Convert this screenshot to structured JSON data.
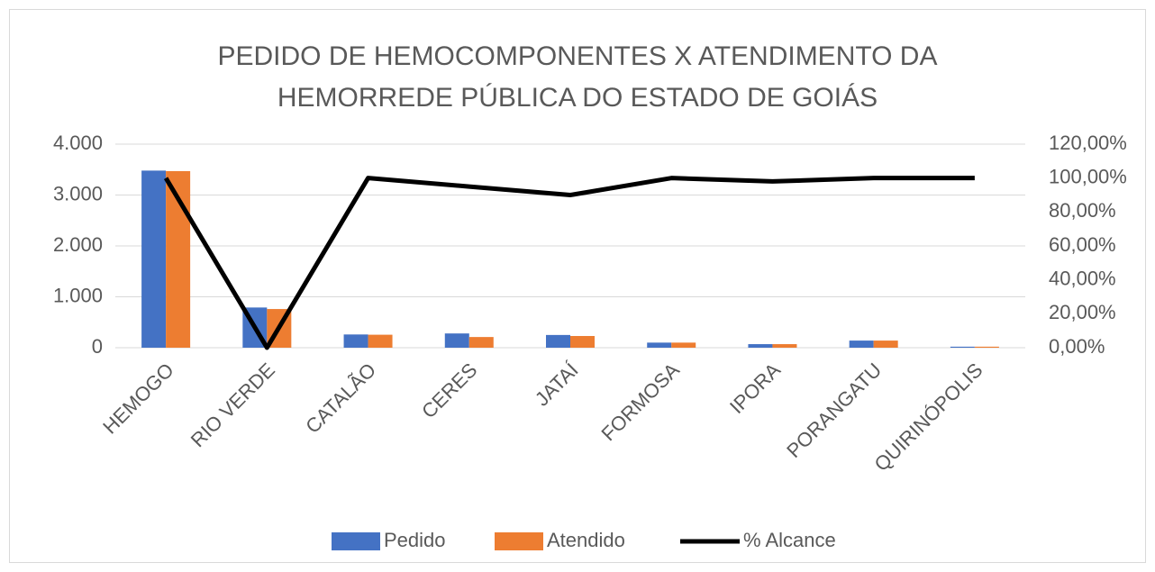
{
  "chart_data": {
    "type": "bar",
    "title": "PEDIDO DE HEMOCOMPONENTES X ATENDIMENTO DA HEMORREDE PÚBLICA DO ESTADO DE GOIÁS",
    "categories": [
      "HEMOGO",
      "RIO VERDE",
      "CATALÃO",
      "CERES",
      "JATAÍ",
      "FORMOSA",
      "IPORA",
      "PORANGATU",
      "QUIRINÓPOLIS"
    ],
    "series": [
      {
        "name": "Pedido",
        "type": "bar",
        "color": "#4472c4",
        "values": [
          3480,
          790,
          260,
          280,
          250,
          100,
          70,
          140,
          20
        ]
      },
      {
        "name": "Atendido",
        "type": "bar",
        "color": "#ed7d31",
        "values": [
          3470,
          760,
          255,
          210,
          230,
          100,
          70,
          140,
          20
        ]
      },
      {
        "name": "% Alcance",
        "type": "line",
        "axis": "y2",
        "color": "#000000",
        "values": [
          100,
          0,
          100,
          95,
          90,
          100,
          98,
          100,
          100
        ]
      }
    ],
    "ylim": [
      0,
      4000
    ],
    "yticks": [
      0,
      {
        "value": 1000,
        "label": "1.000"
      },
      {
        "value": 2000,
        "label": "2.000"
      },
      {
        "value": 3000,
        "label": "3.000"
      },
      {
        "value": 4000,
        "label": "4.000"
      }
    ],
    "y2lim": [
      0,
      120
    ],
    "y2ticks": [
      {
        "value": 0,
        "label": "0,00%"
      },
      {
        "value": 20,
        "label": "20,00%"
      },
      {
        "value": 40,
        "label": "40,00%"
      },
      {
        "value": 60,
        "label": "60,00%"
      },
      {
        "value": 80,
        "label": "80,00%"
      },
      {
        "value": 100,
        "label": "100,00%"
      },
      {
        "value": 120,
        "label": "120,00%"
      }
    ],
    "grid": true,
    "legend": "bottom"
  }
}
